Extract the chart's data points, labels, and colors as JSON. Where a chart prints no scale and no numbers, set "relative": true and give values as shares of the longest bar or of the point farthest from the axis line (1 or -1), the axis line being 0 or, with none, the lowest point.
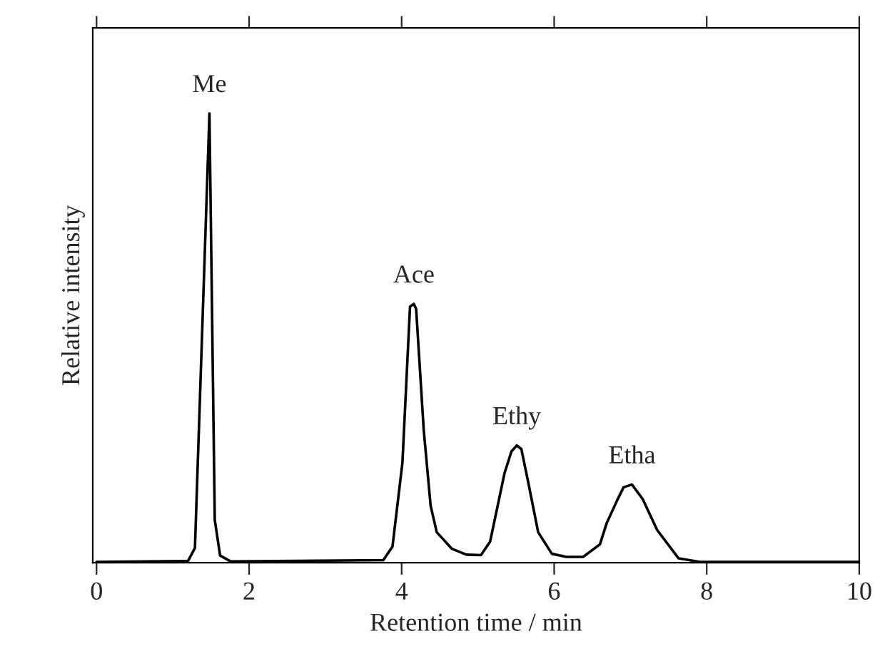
{
  "chart_data": {
    "type": "line",
    "relative": true,
    "xlabel": "Retention time / min",
    "ylabel": "Relative intensity",
    "xlim": [
      -0.05,
      10
    ],
    "xticks": [
      0,
      2,
      4,
      6,
      8,
      10
    ],
    "grid": false,
    "legend": false,
    "series": [
      {
        "color": "#000000",
        "x": [
          0.0,
          1.2,
          1.29,
          1.48,
          1.55,
          1.62,
          1.76,
          3.76,
          3.88,
          4.01,
          4.11,
          4.16,
          4.19,
          4.29,
          4.38,
          4.46,
          4.66,
          4.85,
          5.04,
          5.16,
          5.35,
          5.44,
          5.51,
          5.57,
          5.66,
          5.79,
          5.97,
          6.16,
          6.38,
          6.6,
          6.69,
          6.82,
          6.91,
          7.02,
          7.16,
          7.35,
          7.63,
          7.91,
          10.0
        ],
        "values": [
          0.002,
          0.004,
          0.033,
          1.0,
          0.095,
          0.016,
          0.003,
          0.006,
          0.036,
          0.222,
          0.57,
          0.576,
          0.565,
          0.295,
          0.127,
          0.068,
          0.031,
          0.018,
          0.017,
          0.047,
          0.2,
          0.248,
          0.261,
          0.253,
          0.179,
          0.068,
          0.02,
          0.013,
          0.013,
          0.041,
          0.089,
          0.137,
          0.168,
          0.174,
          0.142,
          0.073,
          0.01,
          0.002,
          0.002
        ]
      }
    ],
    "annotations": [
      {
        "text": "Me",
        "x": 1.48,
        "y": 1.0
      },
      {
        "text": "Ace",
        "x": 4.16,
        "y": 0.576
      },
      {
        "text": "Ethy",
        "x": 5.51,
        "y": 0.261
      },
      {
        "text": "Etha",
        "x": 7.02,
        "y": 0.174
      }
    ]
  }
}
